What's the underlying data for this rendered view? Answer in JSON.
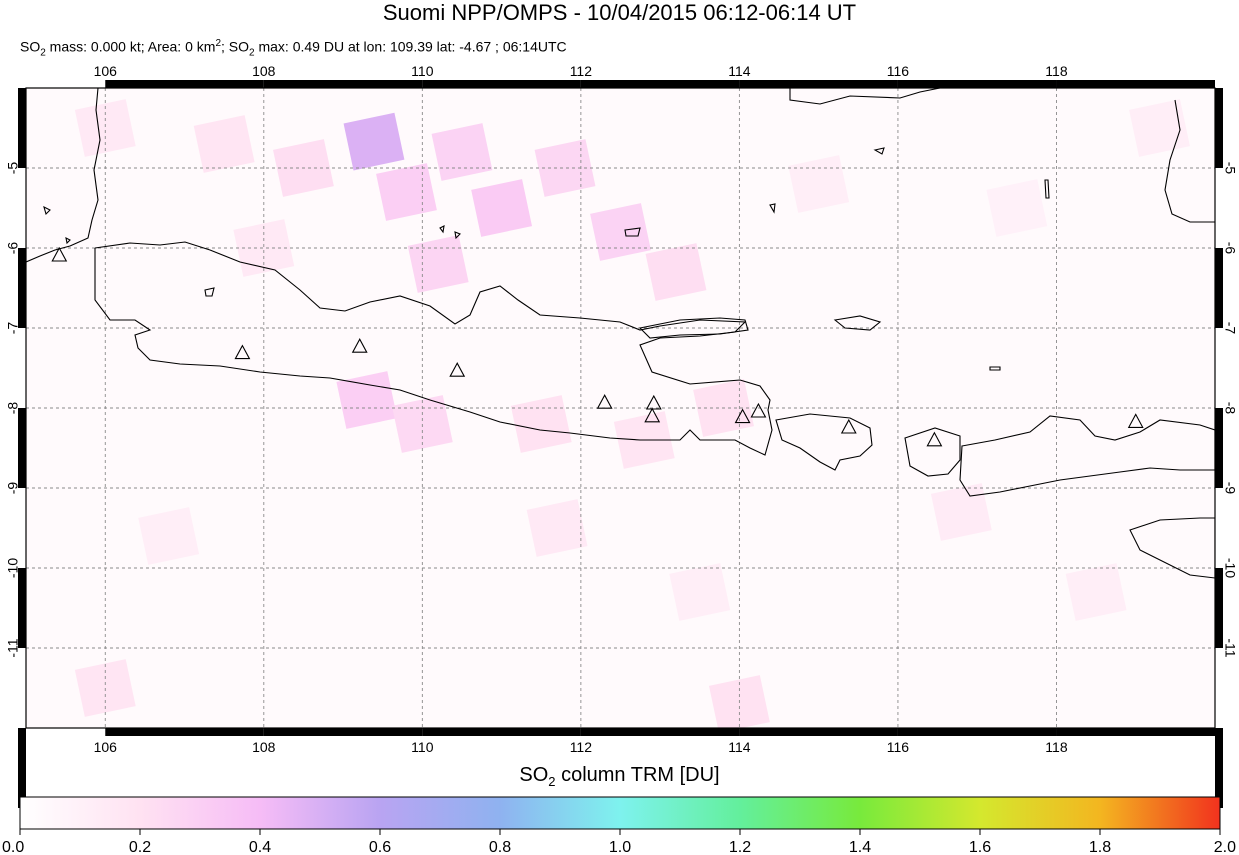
{
  "header": {
    "title": "Suomi NPP/OMPS - 10/04/2015 06:12-06:14 UT",
    "subtitle": {
      "p1": "SO",
      "s1": "2",
      "p2": " mass: 0.000 kt; Area: 0 km",
      "s2": "2",
      "p3": "; SO",
      "s3": "2",
      "p4": " max: 0.49 DU at lon: 109.39 lat: -4.67 ; 06:14UTC"
    }
  },
  "map": {
    "lon_range": [
      105.0,
      120.0
    ],
    "lat_range": [
      -12.0,
      -4.0
    ],
    "lon_ticks": [
      "106",
      "108",
      "110",
      "112",
      "114",
      "116",
      "118"
    ],
    "lat_ticks": [
      "-5",
      "-6",
      "-7",
      "-8",
      "-9",
      "-10",
      "-11"
    ],
    "gridlines": true,
    "volcano_marker": "triangle-outline",
    "volcanoes": [
      {
        "lon": 105.42,
        "lat": -6.1
      },
      {
        "lon": 107.73,
        "lat": -7.32
      },
      {
        "lon": 109.21,
        "lat": -7.24
      },
      {
        "lon": 110.44,
        "lat": -7.54
      },
      {
        "lon": 112.3,
        "lat": -7.94
      },
      {
        "lon": 112.92,
        "lat": -7.95
      },
      {
        "lon": 112.9,
        "lat": -8.11
      },
      {
        "lon": 114.04,
        "lat": -8.12
      },
      {
        "lon": 114.24,
        "lat": -8.05
      },
      {
        "lon": 115.38,
        "lat": -8.25
      },
      {
        "lon": 116.46,
        "lat": -8.41
      },
      {
        "lon": 119.0,
        "lat": -8.18
      }
    ],
    "so2_cells": [
      {
        "lon": 106.0,
        "lat": -4.5,
        "du": 0.15
      },
      {
        "lon": 107.5,
        "lat": -4.7,
        "du": 0.18
      },
      {
        "lon": 108.5,
        "lat": -5.0,
        "du": 0.22
      },
      {
        "lon": 109.39,
        "lat": -4.67,
        "du": 0.49
      },
      {
        "lon": 109.8,
        "lat": -5.3,
        "du": 0.3
      },
      {
        "lon": 110.5,
        "lat": -4.8,
        "du": 0.28
      },
      {
        "lon": 111.0,
        "lat": -5.5,
        "du": 0.32
      },
      {
        "lon": 111.8,
        "lat": -5.0,
        "du": 0.26
      },
      {
        "lon": 112.5,
        "lat": -5.8,
        "du": 0.28
      },
      {
        "lon": 113.2,
        "lat": -6.3,
        "du": 0.22
      },
      {
        "lon": 110.2,
        "lat": -6.2,
        "du": 0.27
      },
      {
        "lon": 108.0,
        "lat": -6.0,
        "du": 0.15
      },
      {
        "lon": 109.3,
        "lat": -7.9,
        "du": 0.3
      },
      {
        "lon": 110.0,
        "lat": -8.2,
        "du": 0.25
      },
      {
        "lon": 111.5,
        "lat": -8.2,
        "du": 0.2
      },
      {
        "lon": 112.8,
        "lat": -8.4,
        "du": 0.18
      },
      {
        "lon": 113.8,
        "lat": -8.0,
        "du": 0.2
      },
      {
        "lon": 106.8,
        "lat": -9.6,
        "du": 0.12
      },
      {
        "lon": 111.7,
        "lat": -9.5,
        "du": 0.15
      },
      {
        "lon": 113.5,
        "lat": -10.3,
        "du": 0.12
      },
      {
        "lon": 106.0,
        "lat": -11.5,
        "du": 0.18
      },
      {
        "lon": 114.0,
        "lat": -11.7,
        "du": 0.2
      },
      {
        "lon": 116.8,
        "lat": -9.3,
        "du": 0.14
      },
      {
        "lon": 118.5,
        "lat": -10.3,
        "du": 0.12
      },
      {
        "lon": 115.0,
        "lat": -5.2,
        "du": 0.12
      },
      {
        "lon": 117.5,
        "lat": -5.5,
        "du": 0.1
      },
      {
        "lon": 119.3,
        "lat": -4.5,
        "du": 0.12
      }
    ]
  },
  "colorbar": {
    "title_p1": "SO",
    "title_sub": "2",
    "title_p2": " column TRM [DU]",
    "min": 0.0,
    "max": 2.0,
    "tick_labels": [
      "0.0",
      "0.2",
      "0.4",
      "0.6",
      "0.8",
      "1.0",
      "1.2",
      "1.4",
      "1.6",
      "1.8",
      "2.0"
    ],
    "stops": [
      "#ffffff",
      "#ffe2f2",
      "#f6bcf6",
      "#b9a4f2",
      "#8fb2f0",
      "#7ef2ee",
      "#63ef9c",
      "#78ea3c",
      "#d4e82e",
      "#f3b620",
      "#f2321e"
    ]
  }
}
